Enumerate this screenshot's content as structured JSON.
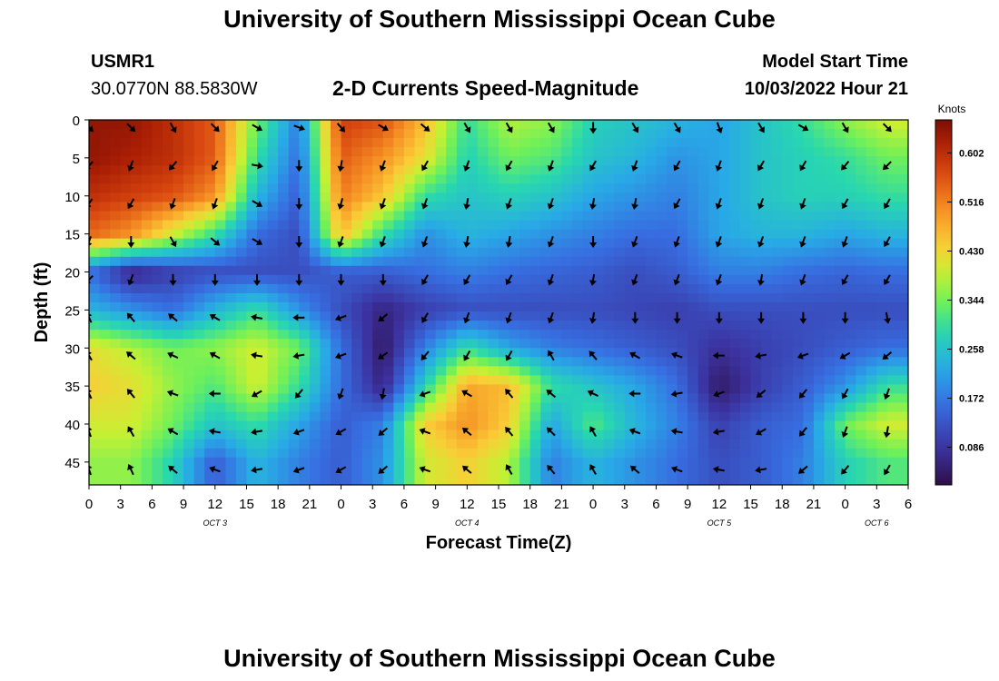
{
  "header": {
    "title": "University of Southern Mississippi Ocean Cube",
    "station_id": "USMR1",
    "coordinates": "30.0770N  88.5830W",
    "model_start_label": "Model Start Time",
    "model_start_value": "10/03/2022 Hour 21",
    "bottom_title": "University of Southern Mississippi Ocean Cube"
  },
  "chart_data": {
    "type": "heatmap",
    "title": "2-D Currents Speed-Magnitude",
    "xlabel": "Forecast Time(Z)",
    "ylabel": "Depth (ft)",
    "colorbar_label": "Knots",
    "x_tick_labels": [
      "0",
      "3",
      "6",
      "9",
      "12",
      "15",
      "18",
      "21",
      "0",
      "3",
      "6",
      "9",
      "12",
      "15",
      "18",
      "21",
      "0",
      "3",
      "6",
      "9",
      "12",
      "15",
      "18",
      "21",
      "0",
      "3",
      "6"
    ],
    "x_range_hours": [
      0,
      78
    ],
    "day_labels": [
      {
        "label": "OCT 3",
        "hour": 12
      },
      {
        "label": "OCT 4",
        "hour": 36
      },
      {
        "label": "OCT 5",
        "hour": 60
      },
      {
        "label": "OCT 6",
        "hour": 75
      }
    ],
    "y_ticks": [
      0,
      5,
      10,
      15,
      20,
      25,
      30,
      35,
      40,
      45
    ],
    "y_range": [
      0,
      48
    ],
    "colorbar_ticks": [
      0.086,
      0.172,
      0.258,
      0.344,
      0.43,
      0.516,
      0.602
    ],
    "colorbar_tick_labels": [
      "0.086",
      "0.172",
      "0.258",
      "0.344",
      "0.430",
      "0.516",
      "0.602"
    ],
    "value_range": [
      0.02,
      0.66
    ],
    "depths": [
      0,
      5,
      10,
      15,
      20,
      25,
      30,
      35,
      40,
      45
    ],
    "times": [
      0,
      4,
      8,
      12,
      16,
      20,
      24,
      28,
      32,
      36,
      40,
      44,
      48,
      52,
      56,
      60,
      64,
      68,
      72,
      76
    ],
    "speed": [
      [
        0.64,
        0.64,
        0.6,
        0.55,
        0.34,
        0.18,
        0.58,
        0.56,
        0.46,
        0.3,
        0.38,
        0.36,
        0.28,
        0.26,
        0.24,
        0.22,
        0.26,
        0.3,
        0.36,
        0.4
      ],
      [
        0.64,
        0.62,
        0.6,
        0.55,
        0.3,
        0.16,
        0.55,
        0.5,
        0.42,
        0.28,
        0.34,
        0.32,
        0.26,
        0.24,
        0.2,
        0.22,
        0.26,
        0.28,
        0.3,
        0.34
      ],
      [
        0.6,
        0.58,
        0.56,
        0.5,
        0.24,
        0.14,
        0.52,
        0.45,
        0.3,
        0.26,
        0.28,
        0.26,
        0.22,
        0.2,
        0.18,
        0.22,
        0.26,
        0.28,
        0.28,
        0.3
      ],
      [
        0.54,
        0.5,
        0.4,
        0.3,
        0.16,
        0.12,
        0.46,
        0.3,
        0.2,
        0.24,
        0.22,
        0.2,
        0.18,
        0.16,
        0.16,
        0.22,
        0.24,
        0.24,
        0.22,
        0.24
      ],
      [
        0.16,
        0.06,
        0.1,
        0.12,
        0.12,
        0.12,
        0.14,
        0.14,
        0.16,
        0.18,
        0.16,
        0.15,
        0.14,
        0.12,
        0.14,
        0.18,
        0.18,
        0.16,
        0.15,
        0.16
      ],
      [
        0.24,
        0.2,
        0.16,
        0.24,
        0.3,
        0.2,
        0.12,
        0.06,
        0.1,
        0.12,
        0.12,
        0.12,
        0.12,
        0.11,
        0.1,
        0.12,
        0.12,
        0.12,
        0.12,
        0.12
      ],
      [
        0.42,
        0.38,
        0.34,
        0.36,
        0.4,
        0.34,
        0.16,
        0.04,
        0.18,
        0.3,
        0.22,
        0.18,
        0.16,
        0.14,
        0.12,
        0.08,
        0.1,
        0.12,
        0.14,
        0.16
      ],
      [
        0.44,
        0.42,
        0.36,
        0.32,
        0.4,
        0.3,
        0.16,
        0.06,
        0.28,
        0.48,
        0.46,
        0.3,
        0.26,
        0.22,
        0.16,
        0.04,
        0.1,
        0.14,
        0.2,
        0.3
      ],
      [
        0.4,
        0.4,
        0.34,
        0.26,
        0.3,
        0.22,
        0.14,
        0.18,
        0.44,
        0.5,
        0.44,
        0.22,
        0.32,
        0.24,
        0.18,
        0.1,
        0.14,
        0.16,
        0.34,
        0.4
      ],
      [
        0.36,
        0.36,
        0.28,
        0.14,
        0.24,
        0.18,
        0.14,
        0.2,
        0.4,
        0.44,
        0.38,
        0.18,
        0.24,
        0.2,
        0.16,
        0.12,
        0.14,
        0.18,
        0.28,
        0.32
      ]
    ],
    "arrow_dirs": [
      [
        315,
        315,
        300,
        315,
        330,
        340,
        310,
        330,
        320,
        300,
        300,
        300,
        270,
        300,
        300,
        290,
        300,
        330,
        300,
        315
      ],
      [
        225,
        250,
        230,
        240,
        350,
        270,
        260,
        250,
        240,
        250,
        240,
        250,
        240,
        250,
        240,
        250,
        240,
        240,
        230,
        225
      ],
      [
        235,
        240,
        250,
        250,
        330,
        270,
        255,
        250,
        250,
        260,
        250,
        250,
        260,
        260,
        240,
        250,
        250,
        250,
        240,
        240
      ],
      [
        250,
        270,
        300,
        320,
        330,
        270,
        250,
        250,
        250,
        260,
        260,
        250,
        270,
        250,
        250,
        250,
        250,
        250,
        250,
        240
      ],
      [
        225,
        250,
        270,
        270,
        270,
        270,
        270,
        270,
        240,
        240,
        240,
        250,
        260,
        250,
        250,
        250,
        260,
        250,
        240,
        240
      ],
      [
        115,
        130,
        140,
        150,
        170,
        180,
        200,
        220,
        240,
        250,
        250,
        250,
        260,
        270,
        270,
        270,
        270,
        270,
        270,
        280
      ],
      [
        120,
        140,
        155,
        150,
        170,
        190,
        200,
        215,
        230,
        240,
        240,
        120,
        130,
        150,
        160,
        180,
        190,
        200,
        210,
        220
      ],
      [
        115,
        130,
        160,
        180,
        210,
        230,
        250,
        260,
        200,
        150,
        130,
        140,
        155,
        180,
        190,
        200,
        220,
        230,
        240,
        250
      ],
      [
        110,
        120,
        150,
        170,
        190,
        200,
        210,
        220,
        160,
        140,
        130,
        135,
        120,
        160,
        170,
        190,
        210,
        230,
        250,
        260
      ],
      [
        110,
        115,
        140,
        160,
        190,
        200,
        210,
        220,
        160,
        140,
        120,
        130,
        120,
        140,
        160,
        170,
        190,
        220,
        230,
        240
      ]
    ]
  }
}
